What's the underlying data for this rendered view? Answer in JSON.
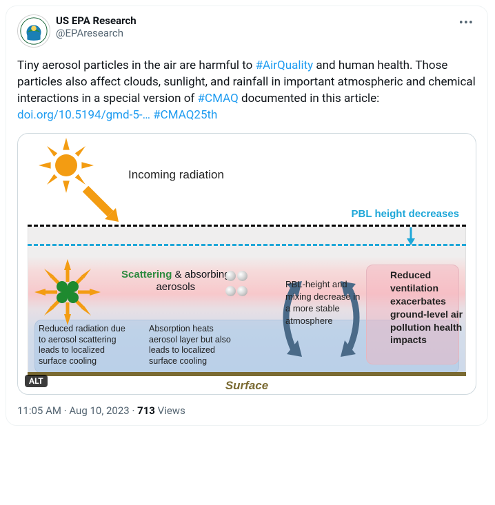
{
  "account": {
    "display_name": "US EPA Research",
    "handle": "@EPAresearch"
  },
  "tweet": {
    "text_parts": [
      {
        "t": "Tiny aerosol particles in the air are harmful to ",
        "link": false
      },
      {
        "t": "#AirQuality",
        "link": true
      },
      {
        "t": " and human health. Those particles also affect clouds, sunlight, and rainfall in important atmospheric and chemical interactions in a special version of ",
        "link": false
      },
      {
        "t": "#CMAQ",
        "link": true
      },
      {
        "t": " documented in this article: ",
        "link": false
      },
      {
        "t": "doi.org/10.5194/gmd-5-…",
        "link": true
      },
      {
        "t": " ",
        "link": false
      },
      {
        "t": "#CMAQ25th",
        "link": true
      }
    ],
    "alt_badge": "ALT",
    "time": "11:05 AM",
    "date": "Aug 10, 2023",
    "views_number": "713",
    "views_label": "Views"
  },
  "diagram": {
    "incoming_label": "Incoming radiation",
    "pbl_decrease": "PBL height decreases",
    "scatter_label_green": "Scattering",
    "scatter_label_rest": " & absorbing",
    "scatter_label_line2": "aerosols",
    "box1": "Reduced radiation due to aerosol scattering leads to localized surface cooling",
    "box2": "Absorption heats aerosol layer but also leads to localized surface cooling",
    "box3": "PBL-height and mixing decrease in a more stable atmosphere",
    "box4": "Reduced ventilation exacerbates ground-level air pollution health impacts",
    "surface": "Surface",
    "colors": {
      "sun": "#f39c12",
      "green_dot": "#1e8a2f",
      "blue_dash": "#1fa7d8",
      "circ_arrow": "#4a6a88",
      "surface_brown": "#7a6a32"
    }
  }
}
